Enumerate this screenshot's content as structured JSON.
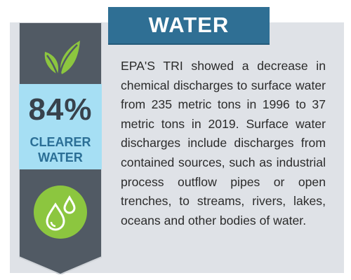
{
  "title": "WATER",
  "stat": {
    "value": "84%",
    "label_line1": "CLEARER",
    "label_line2": "WATER"
  },
  "description": "EPA'S TRI showed a decrease in chemical discharges to surface water from 235 metric tons in 1996 to 37 metric tons in 2019. Surface water discharges include discharges from contained sources, such as industrial process outflow pipes or open trenches, to streams, rivers, lakes, oceans and other bodies of water.",
  "icons": {
    "top": "leaf-icon",
    "bottom": "water-drops-icon"
  },
  "colors": {
    "panel": "#dfe2e7",
    "title_bar": "#2f6f94",
    "ribbon": "#515a64",
    "stat_box": "#a6dff4",
    "leaf_green": "#8cc63f",
    "drop_circle": "#8cc63f"
  }
}
